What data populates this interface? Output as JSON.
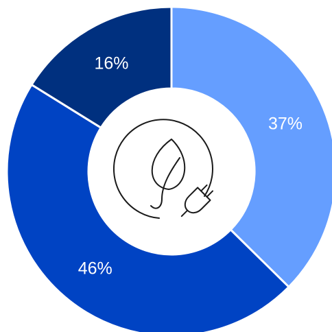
{
  "chart_data": {
    "type": "pie",
    "donut": true,
    "title": "",
    "slices": [
      {
        "label": "37%",
        "value": 37,
        "color": "#659eff"
      },
      {
        "label": "46%",
        "value": 46,
        "color": "#0043c3"
      },
      {
        "label": "16%",
        "value": 16,
        "color": "#00307f"
      }
    ],
    "legend": "none",
    "center_icon": "leaf-plug-icon"
  }
}
